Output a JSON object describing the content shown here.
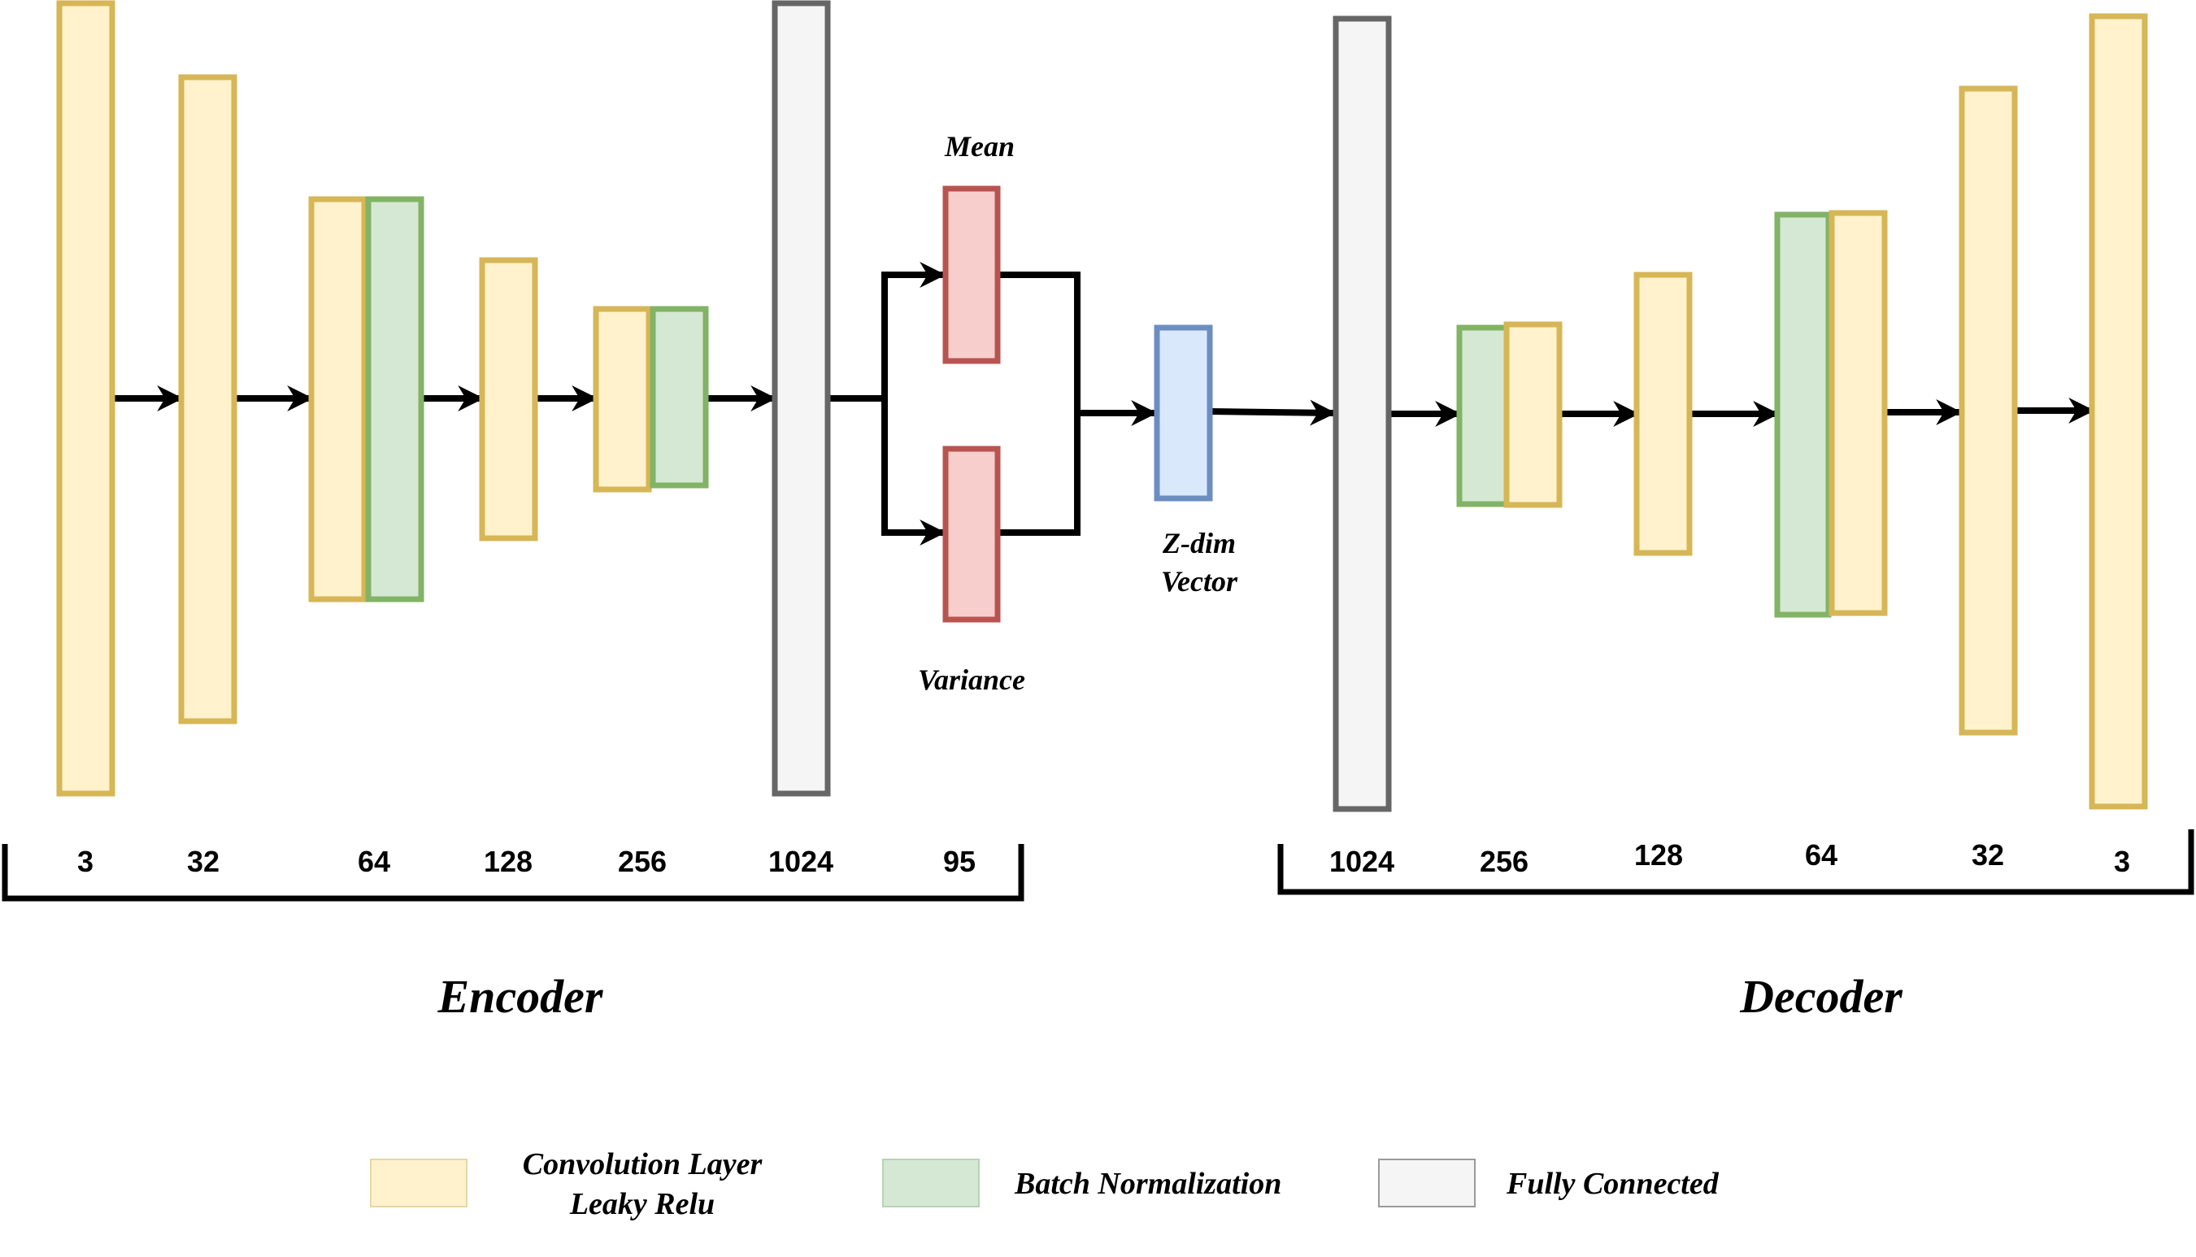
{
  "labels": {
    "mean": "Mean",
    "variance": "Variance",
    "zdim_line1": "Z-dim",
    "zdim_line2": "Vector",
    "encoder": "Encoder",
    "decoder": "Decoder"
  },
  "encoder_dims": [
    "3",
    "32",
    "64",
    "128",
    "256",
    "1024",
    "95"
  ],
  "decoder_dims": [
    "1024",
    "256",
    "128",
    "64",
    "32",
    "3"
  ],
  "legend": {
    "conv_line1": "Convolution Layer",
    "conv_line2": "Leaky Relu",
    "batch_norm": "Batch Normalization",
    "fully_connected": "Fully Connected"
  },
  "colors": {
    "conv_fill": "#fff2cc",
    "conv_stroke": "#d6b656",
    "bn_fill": "#d5e8d4",
    "bn_stroke": "#82b366",
    "fc_fill": "#f5f5f5",
    "fc_stroke": "#666666",
    "dist_fill": "#f8cecc",
    "dist_stroke": "#b85450",
    "z_fill": "#dae8fc",
    "z_stroke": "#6c8ebf"
  }
}
